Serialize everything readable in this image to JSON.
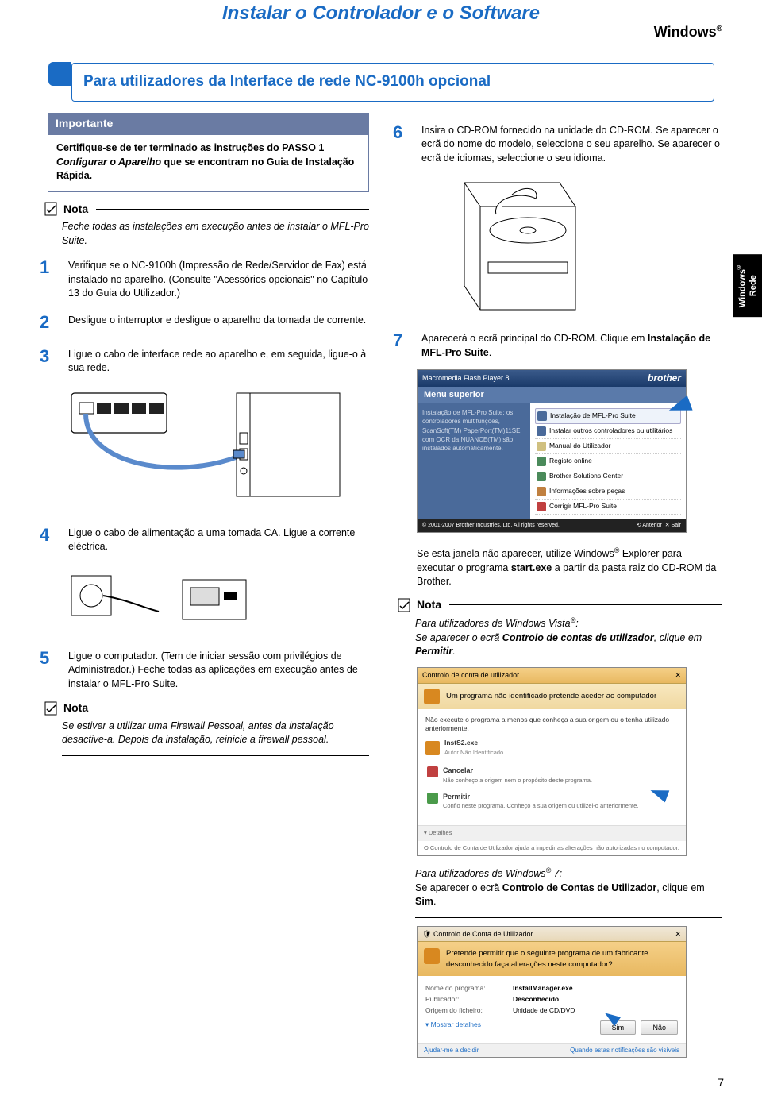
{
  "header": {
    "title": "Instalar o Controlador e o Software",
    "os_label": "Windows",
    "reg": "®"
  },
  "side_tab": {
    "line1": "Windows",
    "reg": "®",
    "line2": "Rede"
  },
  "section": {
    "title": "Para utilizadores da Interface de rede NC-9100h opcional"
  },
  "importante": {
    "label": "Importante",
    "body_pre": "Certifique-se de ter terminado as instruções do PASSO 1 ",
    "body_ital": "Configurar o Aparelho",
    "body_post": " que se encontram no Guia de Instalação Rápida."
  },
  "notas": {
    "label": "Nota",
    "n1": "Feche todas as instalações em execução antes de instalar o MFL-Pro Suite.",
    "n2": "Se estiver a utilizar uma Firewall Pessoal, antes da instalação desactive-a. Depois da instalação, reinicie a firewall pessoal.",
    "n3_pre": "Para utilizadores de Windows Vista",
    "n3_post": ":",
    "n3_body_pre": "Se aparecer o ecrã ",
    "n3_bold": "Controlo de contas de utilizador",
    "n3_mid": ", clique em ",
    "n3_bold2": "Permitir",
    "n3_end": "."
  },
  "steps": {
    "s1": "Verifique se o NC-9100h (Impressão de Rede/Servidor de Fax) está instalado no aparelho. (Consulte \"Acessórios opcionais\" no Capítulo 13 do Guia do Utilizador.)",
    "s2": "Desligue o interruptor e desligue o aparelho da tomada de corrente.",
    "s3": "Ligue o cabo de interface rede ao aparelho e, em seguida, ligue-o à sua rede.",
    "s4": "Ligue o cabo de alimentação a uma tomada CA. Ligue a corrente eléctrica.",
    "s5": "Ligue o computador. (Tem de iniciar sessão com privilégios de Administrador.) Feche todas as aplicações em execução antes de instalar o MFL-Pro Suite.",
    "s6": "Insira o CD-ROM fornecido na unidade do CD-ROM. Se aparecer o ecrã do nome do modelo, seleccione o seu aparelho. Se aparecer o ecrã de idiomas, seleccione o seu idioma.",
    "s7_pre": "Aparecerá o ecrã principal do CD-ROM. Clique em ",
    "s7_bold": "Instalação de MFL-Pro Suite",
    "s7_end": "."
  },
  "extra": {
    "explorer_pre": "Se esta janela não aparecer, utilize Windows",
    "explorer_mid": " Explorer para executar o programa ",
    "explorer_bold": "start.exe",
    "explorer_post": " a partir da pasta raiz do CD-ROM da Brother.",
    "win7_pre": "Para utilizadores de Windows",
    "win7_post": " 7:",
    "win7_body_pre": "Se aparecer o ecrã ",
    "win7_bold": "Controlo de Contas de Utilizador",
    "win7_mid": ", clique em ",
    "win7_bold2": "Sim",
    "win7_end": "."
  },
  "installer": {
    "window_title": "Macromedia Flash Player 8",
    "brand": "brother",
    "menu": "Menu superior",
    "left_text": "Instalação de MFL-Pro Suite: os controladores multifunções, ScanSoft(TM) PaperPort(TM)11SE com OCR da NUANCE(TM) são instalados automaticamente.",
    "items": [
      {
        "icon": "gear",
        "label": "Instalação de MFL-Pro Suite",
        "hl": true
      },
      {
        "icon": "gear",
        "label": "Instalar outros controladores ou utilitários"
      },
      {
        "icon": "doc",
        "label": "Manual do Utilizador"
      },
      {
        "icon": "globe",
        "label": "Registo online"
      },
      {
        "icon": "globe",
        "label": "Brother Solutions Center"
      },
      {
        "icon": "bag",
        "label": "Informações sobre peças"
      },
      {
        "icon": "fix",
        "label": "Corrigir MFL-Pro Suite"
      }
    ],
    "footer_left": "© 2001-2007 Brother Industries, Ltd. All rights reserved.",
    "footer_back": "Anterior",
    "footer_exit": "Sair"
  },
  "uac_vista": {
    "titlebar": "Controlo de conta de utilizador",
    "banner": "Um programa não identificado pretende aceder ao computador",
    "body": "Não execute o programa a menos que conheça a sua origem ou o tenha utilizado anteriormente.",
    "program": "InstS2.exe",
    "publisher": "Autor Não Identificado",
    "cancel": "Cancelar",
    "cancel_sub": "Não conheço a origem nem o propósito deste programa.",
    "allow": "Permitir",
    "allow_sub": "Confio neste programa. Conheço a sua origem ou utilizei-o anteriormente.",
    "details": "Detalhes",
    "footnote": "O Controlo de Conta de Utilizador ajuda a impedir as alterações não autorizadas no computador."
  },
  "uac_7": {
    "titlebar": "Controlo de Conta de Utilizador",
    "banner": "Pretende permitir que o seguinte programa de um fabricante desconhecido faça alterações neste computador?",
    "lbl_prog": "Nome do programa:",
    "val_prog": "InstallManager.exe",
    "lbl_pub": "Publicador:",
    "val_pub": "Desconhecido",
    "lbl_orig": "Origem do ficheiro:",
    "val_orig": "Unidade de CD/DVD",
    "details": "Mostrar detalhes",
    "yes": "Sim",
    "no": "Não",
    "footer_l": "Ajudar-me a decidir",
    "footer_r": "Quando estas notificações são visíveis"
  },
  "page_number": "7"
}
